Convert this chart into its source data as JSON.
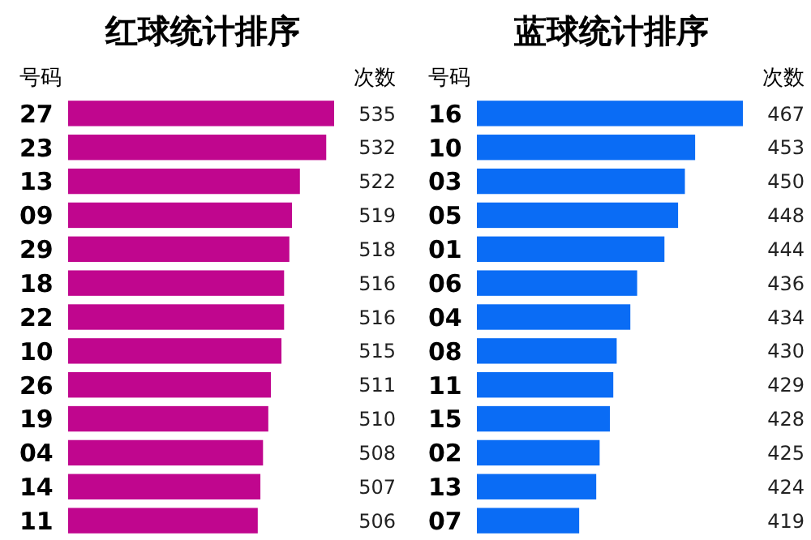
{
  "chart_data": [
    {
      "type": "bar",
      "orientation": "horizontal",
      "title": "红球统计排序",
      "ylabel": "号码",
      "xlabel": "次数",
      "categories": [
        "27",
        "23",
        "13",
        "09",
        "29",
        "18",
        "22",
        "10",
        "26",
        "19",
        "04",
        "14",
        "11"
      ],
      "values": [
        535,
        532,
        522,
        519,
        518,
        516,
        516,
        515,
        511,
        510,
        508,
        507,
        506
      ],
      "color": "#c0068e",
      "xlim": [
        434,
        535
      ],
      "data_labels": true,
      "tick_labels": "y"
    },
    {
      "type": "bar",
      "orientation": "horizontal",
      "title": "蓝球统计排序",
      "ylabel": "号码",
      "xlabel": "次数",
      "categories": [
        "16",
        "10",
        "03",
        "05",
        "01",
        "06",
        "04",
        "08",
        "11",
        "15",
        "02",
        "13",
        "07"
      ],
      "values": [
        467,
        453,
        450,
        448,
        444,
        436,
        434,
        430,
        429,
        428,
        425,
        424,
        419
      ],
      "color": "#0a6cf5",
      "xlim": [
        389,
        467
      ],
      "data_labels": true,
      "tick_labels": "y"
    }
  ]
}
